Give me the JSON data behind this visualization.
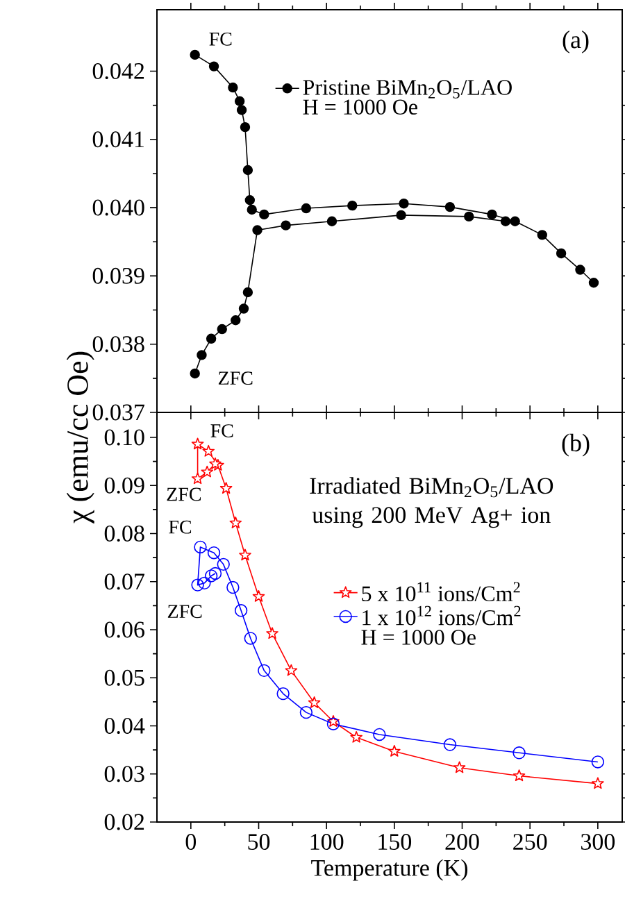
{
  "chart_data": [
    {
      "type": "line",
      "title": "(a)",
      "marker": "circle",
      "legend": "top",
      "tick_labels": "y",
      "xlim": [
        -25,
        318
      ],
      "xticks": [
        0,
        50,
        100,
        150,
        200,
        250,
        300
      ],
      "ylim": [
        0.037,
        0.0429
      ],
      "yticks": [
        {
          "value": 0.037,
          "label": "0.037"
        },
        {
          "value": 0.038,
          "label": "0.038"
        },
        {
          "value": 0.039,
          "label": "0.039"
        },
        {
          "value": 0.04,
          "label": "0.040"
        },
        {
          "value": 0.041,
          "label": "0.041"
        },
        {
          "value": 0.042,
          "label": "0.042"
        }
      ],
      "annotations": [
        "H = 1000 Oe",
        "FC",
        "ZFC"
      ],
      "series": [
        {
          "name": "Pristine BiMn$_{2}$O$_{5}$/LAO",
          "color": "#000000",
          "x": [
            3,
            17,
            31,
            36,
            37.5,
            40,
            42,
            43.5,
            45,
            54,
            85,
            119,
            157,
            191,
            222,
            239,
            259,
            273,
            287,
            297
          ],
          "values": [
            0.04224,
            0.04207,
            0.04176,
            0.04156,
            0.04143,
            0.04118,
            0.04055,
            0.04011,
            0.03997,
            0.0399,
            0.03999,
            0.04003,
            0.04006,
            0.04001,
            0.0399,
            0.0398,
            0.0396,
            0.03933,
            0.03909,
            0.0389
          ]
        },
        {
          "color": "#000000",
          "x": [
            3,
            8,
            15,
            23,
            33,
            39,
            42,
            49,
            70,
            104,
            155,
            205,
            232
          ],
          "values": [
            0.03757,
            0.03784,
            0.03808,
            0.03822,
            0.03835,
            0.03852,
            0.03876,
            0.03967,
            0.03974,
            0.0398,
            0.03989,
            0.03987,
            0.0398
          ]
        }
      ]
    },
    {
      "type": "line",
      "title": "(b)",
      "subtitle": "Irradiated BiMn$_{2}$O$_{5}$/LAO using 200 MeV Ag+ ion",
      "xlabel": "Temperature (K)",
      "ylabel": "χ (emu/cc Oe)",
      "legend": "right",
      "xlim": [
        -25,
        318
      ],
      "xticks": [
        0,
        50,
        100,
        150,
        200,
        250,
        300
      ],
      "ylim": [
        0.02,
        0.1052
      ],
      "yticks": [
        {
          "value": 0.02,
          "label": "0.02"
        },
        {
          "value": 0.03,
          "label": "0.03"
        },
        {
          "value": 0.04,
          "label": "0.04"
        },
        {
          "value": 0.05,
          "label": "0.05"
        },
        {
          "value": 0.06,
          "label": "0.06"
        },
        {
          "value": 0.07,
          "label": "0.07"
        },
        {
          "value": 0.08,
          "label": "0.08"
        },
        {
          "value": 0.09,
          "label": "0.09"
        },
        {
          "value": 0.1,
          "label": "0.10"
        }
      ],
      "annotations": [
        "H = 1000 Oe",
        "FC",
        "ZFC",
        "FC",
        "ZFC"
      ],
      "series": [
        {
          "name": "5 x 10$^{11}$ ions/Cm$^{2}$",
          "color": "#ff0000",
          "marker": "star",
          "x": [
            300,
            242,
            198,
            150,
            122,
            105,
            91,
            74,
            60,
            50,
            40,
            33,
            26,
            20,
            13,
            5,
            5,
            12,
            18
          ],
          "values": [
            0.028,
            0.0296,
            0.0313,
            0.0347,
            0.0376,
            0.0409,
            0.0448,
            0.0515,
            0.0592,
            0.0669,
            0.0755,
            0.0822,
            0.0894,
            0.0942,
            0.0971,
            0.0986,
            0.0914,
            0.0928,
            0.0945
          ]
        },
        {
          "name": "1 x 10$^{12}$ ions/Cm$^{2}$",
          "color": "#0000ff",
          "marker": "circle",
          "x": [
            300,
            242,
            191,
            139,
            105,
            85,
            68,
            54,
            44,
            37,
            31,
            24,
            17,
            7,
            5,
            10,
            15,
            18
          ],
          "values": [
            0.0325,
            0.0344,
            0.0361,
            0.0382,
            0.0404,
            0.0428,
            0.0467,
            0.0515,
            0.0582,
            0.064,
            0.0688,
            0.0736,
            0.076,
            0.0772,
            0.0693,
            0.0697,
            0.0712,
            0.0717
          ]
        }
      ]
    }
  ]
}
